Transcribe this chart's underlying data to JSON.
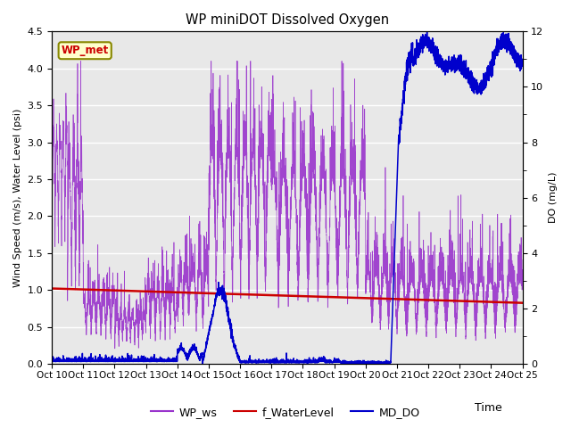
{
  "title": "WP miniDOT Dissolved Oxygen",
  "xlabel": "Time",
  "ylabel_left": "Wind Speed (m/s), Water Level (psi)",
  "ylabel_right": "DO (mg/L)",
  "ylim_left": [
    0,
    4.5
  ],
  "ylim_right": [
    0,
    12
  ],
  "xtick_labels": [
    "Oct 10",
    "Oct 11",
    "Oct 12",
    "Oct 13",
    "Oct 14",
    "Oct 15",
    "Oct 16",
    "Oct 17",
    "Oct 18",
    "Oct 19",
    "Oct 20",
    "Oct 21",
    "Oct 22",
    "Oct 23",
    "Oct 24",
    "Oct 25"
  ],
  "plot_bg_color": "#e8e8e8",
  "wp_ws_color": "#9933cc",
  "f_waterlevel_color": "#cc0000",
  "md_do_color": "#0000cc",
  "legend_label_ws": "WP_ws",
  "legend_label_wl": "f_WaterLevel",
  "legend_label_do": "MD_DO",
  "annotation_text": "WP_met",
  "annotation_color": "#cc0000",
  "annotation_bg": "#ffffcc",
  "annotation_border": "#888800",
  "grid_color": "#ffffff",
  "yticks_left": [
    0.0,
    0.5,
    1.0,
    1.5,
    2.0,
    2.5,
    3.0,
    3.5,
    4.0,
    4.5
  ],
  "yticks_right": [
    0,
    2,
    4,
    6,
    8,
    10,
    12
  ]
}
